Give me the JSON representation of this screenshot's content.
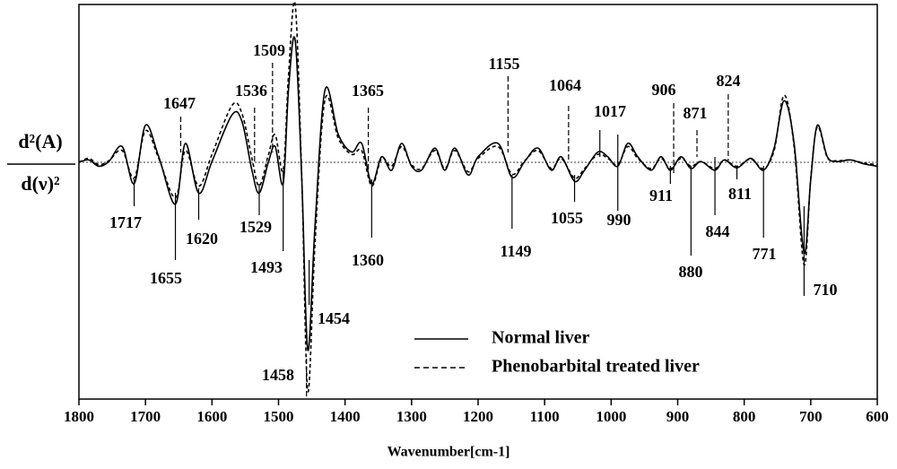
{
  "chart_data": {
    "type": "line",
    "xlabel": "Wavenumber[cm-1]",
    "ylabel": [
      "d²(A)",
      "d(ν)²"
    ],
    "xlim": [
      1800,
      600
    ],
    "xticks": [
      1800,
      1700,
      1600,
      1500,
      1400,
      1300,
      1200,
      1100,
      1000,
      900,
      800,
      700,
      600
    ],
    "ylim": [
      -3,
      2
    ],
    "baseline": 0,
    "x": [
      1800,
      1785,
      1770,
      1755,
      1735,
      1717,
      1700,
      1680,
      1655,
      1640,
      1620,
      1600,
      1570,
      1555,
      1540,
      1529,
      1515,
      1505,
      1493,
      1485,
      1475,
      1465,
      1456,
      1445,
      1430,
      1410,
      1390,
      1375,
      1360,
      1345,
      1330,
      1315,
      1300,
      1285,
      1265,
      1250,
      1235,
      1215,
      1200,
      1170,
      1149,
      1130,
      1110,
      1090,
      1075,
      1055,
      1040,
      1020,
      1005,
      990,
      975,
      960,
      940,
      925,
      911,
      895,
      880,
      865,
      844,
      830,
      811,
      790,
      771,
      755,
      740,
      725,
      710,
      700,
      690,
      675,
      660,
      640,
      620,
      600
    ],
    "series": [
      {
        "name": "Normal liver",
        "color": "#000000",
        "dashed": false,
        "values": [
          0,
          0.03,
          -0.05,
          0.01,
          0.2,
          -0.27,
          0.47,
          0.07,
          -0.53,
          0.24,
          -0.39,
          0.01,
          0.6,
          0.52,
          -0.1,
          -0.39,
          0.01,
          0.2,
          -0.27,
          0.92,
          1.55,
          -0.22,
          -2.38,
          -0.78,
          0.92,
          0.35,
          0.13,
          0.24,
          -0.27,
          0.07,
          -0.1,
          0.24,
          -0.05,
          -0.1,
          0.18,
          -0.1,
          0.18,
          -0.16,
          0.07,
          0.24,
          -0.19,
          0.01,
          0.18,
          -0.1,
          0.07,
          -0.24,
          -0.1,
          0.13,
          0.07,
          -0.05,
          0.24,
          0.07,
          -0.1,
          0.07,
          -0.1,
          0.07,
          -0.08,
          0.01,
          -0.1,
          0.03,
          -0.07,
          0.05,
          -0.1,
          0.18,
          0.78,
          0.24,
          -1.15,
          -0.22,
          0.47,
          0.07,
          0.01,
          0.03,
          -0.02,
          -0.05
        ]
      },
      {
        "name": "Phenobarbital treated liver",
        "color": "#000000",
        "dashed": true,
        "values": [
          0,
          0.05,
          -0.03,
          0.02,
          0.15,
          -0.2,
          0.4,
          0.05,
          -0.45,
          0.15,
          -0.3,
          0.1,
          0.72,
          0.62,
          0.05,
          -0.3,
          0.1,
          0.35,
          -0.1,
          1.1,
          2.0,
          -0.2,
          -2.9,
          -1.0,
          0.8,
          0.3,
          0.1,
          0.15,
          -0.3,
          0.05,
          -0.05,
          0.2,
          -0.03,
          -0.08,
          0.15,
          -0.08,
          0.15,
          -0.12,
          0.05,
          0.2,
          -0.15,
          0.02,
          0.15,
          -0.08,
          0.05,
          -0.2,
          -0.08,
          0.1,
          0.05,
          -0.03,
          0.2,
          0.05,
          -0.08,
          0.05,
          -0.08,
          0.05,
          -0.05,
          0.01,
          -0.08,
          0.03,
          -0.05,
          0.04,
          -0.08,
          0.15,
          0.85,
          0.2,
          -1.3,
          -0.2,
          0.45,
          0.06,
          0.02,
          0.03,
          -0.01,
          -0.03
        ]
      }
    ],
    "annotations": [
      {
        "x": 1717,
        "dashed": false
      },
      {
        "x": 1655,
        "dashed": false
      },
      {
        "x": 1620,
        "dashed": false
      },
      {
        "x": 1529,
        "dashed": false
      },
      {
        "x": 1493,
        "dashed": false
      },
      {
        "x": 1454,
        "dashed": false
      },
      {
        "x": 1458,
        "dashed": true
      },
      {
        "x": 1360,
        "dashed": false
      },
      {
        "x": 1149,
        "dashed": false
      },
      {
        "x": 1055,
        "dashed": false
      },
      {
        "x": 990,
        "dashed": false
      },
      {
        "x": 911,
        "dashed": false
      },
      {
        "x": 880,
        "dashed": false
      },
      {
        "x": 844,
        "dashed": false
      },
      {
        "x": 811,
        "dashed": false
      },
      {
        "x": 771,
        "dashed": false
      },
      {
        "x": 710,
        "dashed": false
      },
      {
        "x": 1647,
        "dashed": true
      },
      {
        "x": 1536,
        "dashed": true
      },
      {
        "x": 1509,
        "dashed": true
      },
      {
        "x": 1365,
        "dashed": true
      },
      {
        "x": 1155,
        "dashed": true
      },
      {
        "x": 1064,
        "dashed": true
      },
      {
        "x": 1017,
        "dashed": false
      },
      {
        "x": 906,
        "dashed": true
      },
      {
        "x": 871,
        "dashed": true
      },
      {
        "x": 824,
        "dashed": true
      }
    ]
  }
}
